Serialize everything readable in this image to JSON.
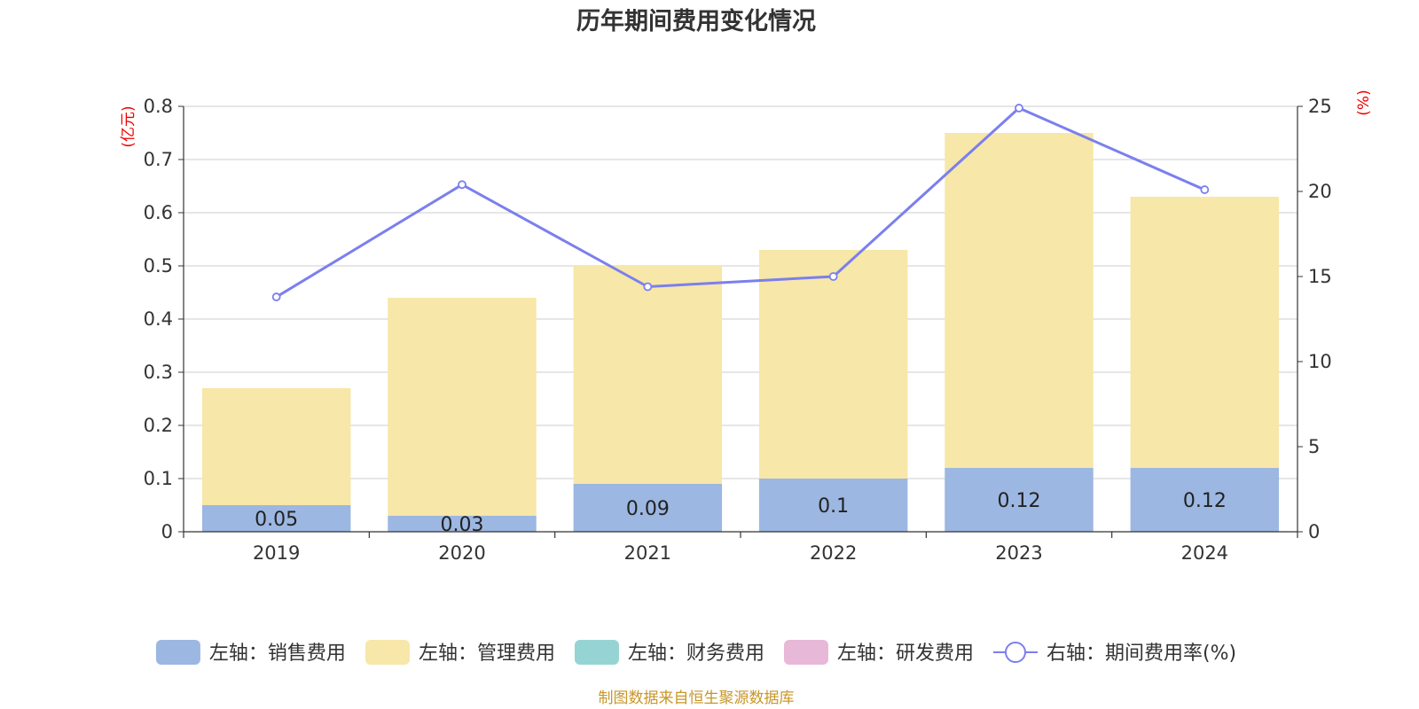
{
  "chart_data": {
    "type": "bar",
    "title": "历年期间费用变化情况",
    "categories": [
      "2019",
      "2020",
      "2021",
      "2022",
      "2023",
      "2024"
    ],
    "left_axis": {
      "unit": "(亿元)",
      "ylim": [
        0,
        0.8
      ],
      "ticks": [
        "0",
        "0.1",
        "0.2",
        "0.3",
        "0.4",
        "0.5",
        "0.6",
        "0.7",
        "0.8"
      ]
    },
    "right_axis": {
      "unit": "(%)",
      "ylim": [
        0,
        25
      ],
      "ticks": [
        "0",
        "5",
        "10",
        "15",
        "20",
        "25"
      ]
    },
    "stacked": true,
    "grid": true,
    "legend_position": "bottom",
    "series": [
      {
        "name": "左轴：销售费用",
        "type": "bar",
        "axis": "left",
        "color": "#9cb7e1",
        "values": [
          0.05,
          0.03,
          0.09,
          0.1,
          0.12,
          0.12
        ],
        "labels": [
          "0.05",
          "0.03",
          "0.09",
          "0.1",
          "0.12",
          "0.12"
        ]
      },
      {
        "name": "左轴：管理费用",
        "type": "bar",
        "axis": "left",
        "color": "#f7e7a8",
        "values": [
          0.22,
          0.41,
          0.41,
          0.43,
          0.63,
          0.51
        ]
      },
      {
        "name": "左轴：财务费用",
        "type": "bar",
        "axis": "left",
        "color": "#96d4d4",
        "values": [
          0,
          0,
          0,
          0,
          0,
          0
        ]
      },
      {
        "name": "左轴：研发费用",
        "type": "bar",
        "axis": "left",
        "color": "#e8b8d8",
        "values": [
          0,
          0,
          0,
          0,
          0,
          0
        ]
      },
      {
        "name": "右轴：期间费用率(%)",
        "type": "line",
        "axis": "right",
        "color": "#7b7fee",
        "values": [
          13.8,
          20.4,
          14.4,
          15.0,
          24.9,
          20.1
        ]
      }
    ],
    "source": "制图数据来自恒生聚源数据库"
  }
}
